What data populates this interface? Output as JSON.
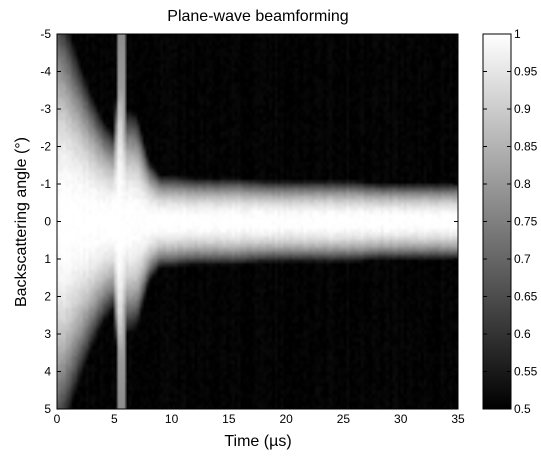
{
  "chart_data": {
    "type": "heatmap",
    "title": "Plane-wave beamforming",
    "xlabel": "Time (µs)",
    "ylabel": "Backscattering angle (°)",
    "xlim": [
      0,
      35
    ],
    "ylim": [
      5,
      -5
    ],
    "x_ticks": [
      "0",
      "5",
      "10",
      "15",
      "20",
      "25",
      "30",
      "35"
    ],
    "y_ticks": [
      "-5",
      "-4",
      "-3",
      "-2",
      "-1",
      "0",
      "1",
      "2",
      "3",
      "4",
      "5"
    ],
    "colorbar": {
      "min": 0.5,
      "max": 1,
      "ticks": [
        "0.5",
        "0.55",
        "0.6",
        "0.65",
        "0.7",
        "0.75",
        "0.8",
        "0.85",
        "0.9",
        "0.95",
        "1"
      ],
      "colormap": "gray"
    },
    "x": [
      0,
      1,
      2,
      3,
      4,
      5,
      5.5,
      6,
      7,
      8,
      9,
      10,
      12,
      14,
      15,
      16,
      18,
      20,
      22,
      24,
      25,
      26,
      28,
      30,
      32,
      34,
      35
    ],
    "main_lobe_half_width_deg": [
      4.4,
      3.8,
      3.1,
      2.5,
      2.0,
      1.7,
      4.5,
      2.2,
      2.1,
      1.2,
      0.9,
      0.9,
      0.85,
      0.85,
      0.85,
      0.85,
      0.8,
      0.8,
      0.8,
      0.8,
      0.8,
      0.8,
      0.75,
      0.75,
      0.75,
      0.75,
      0.75
    ]
  }
}
